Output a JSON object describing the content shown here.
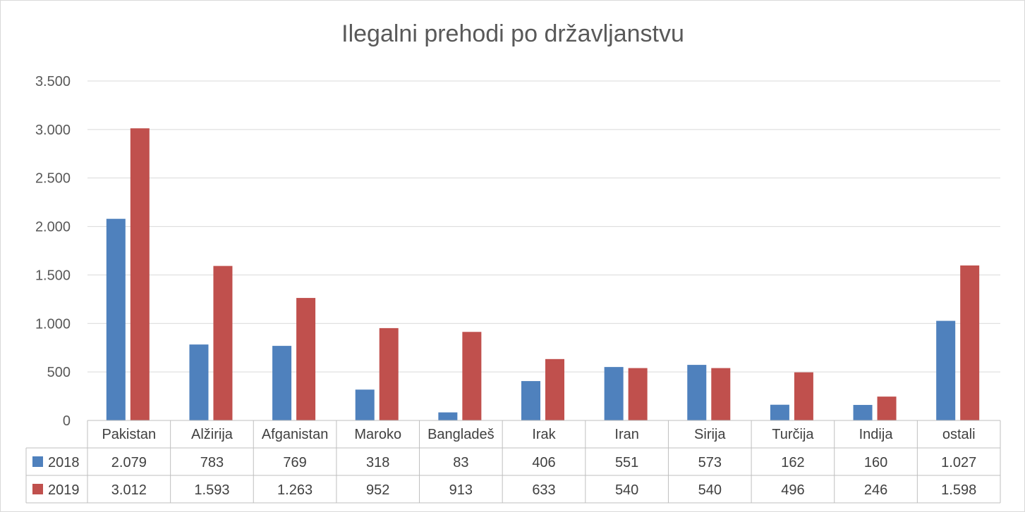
{
  "chart_data": {
    "type": "bar",
    "title": "Ilegalni prehodi po državljanstvu",
    "categories": [
      "Pakistan",
      "Alžirija",
      "Afganistan",
      "Maroko",
      "Bangladeš",
      "Irak",
      "Iran",
      "Sirija",
      "Turčija",
      "Indija",
      "ostali"
    ],
    "series": [
      {
        "name": "2018",
        "color": "#4f81bd",
        "values": [
          2079,
          783,
          769,
          318,
          83,
          406,
          551,
          573,
          162,
          160,
          1027
        ],
        "labels": [
          "2.079",
          "783",
          "769",
          "318",
          "83",
          "406",
          "551",
          "573",
          "162",
          "160",
          "1.027"
        ]
      },
      {
        "name": "2019",
        "color": "#c0504d",
        "values": [
          3012,
          1593,
          1263,
          952,
          913,
          633,
          540,
          540,
          496,
          246,
          1598
        ],
        "labels": [
          "3.012",
          "1.593",
          "1.263",
          "952",
          "913",
          "633",
          "540",
          "540",
          "496",
          "246",
          "1.598"
        ]
      }
    ],
    "ylim": [
      0,
      3500
    ],
    "yticks": [
      0,
      500,
      1000,
      1500,
      2000,
      2500,
      3000,
      3500
    ],
    "ytick_labels": [
      "0",
      "500",
      "1.000",
      "1.500",
      "2.000",
      "2.500",
      "3.000",
      "3.500"
    ],
    "grid": true,
    "legend": "data-table"
  }
}
